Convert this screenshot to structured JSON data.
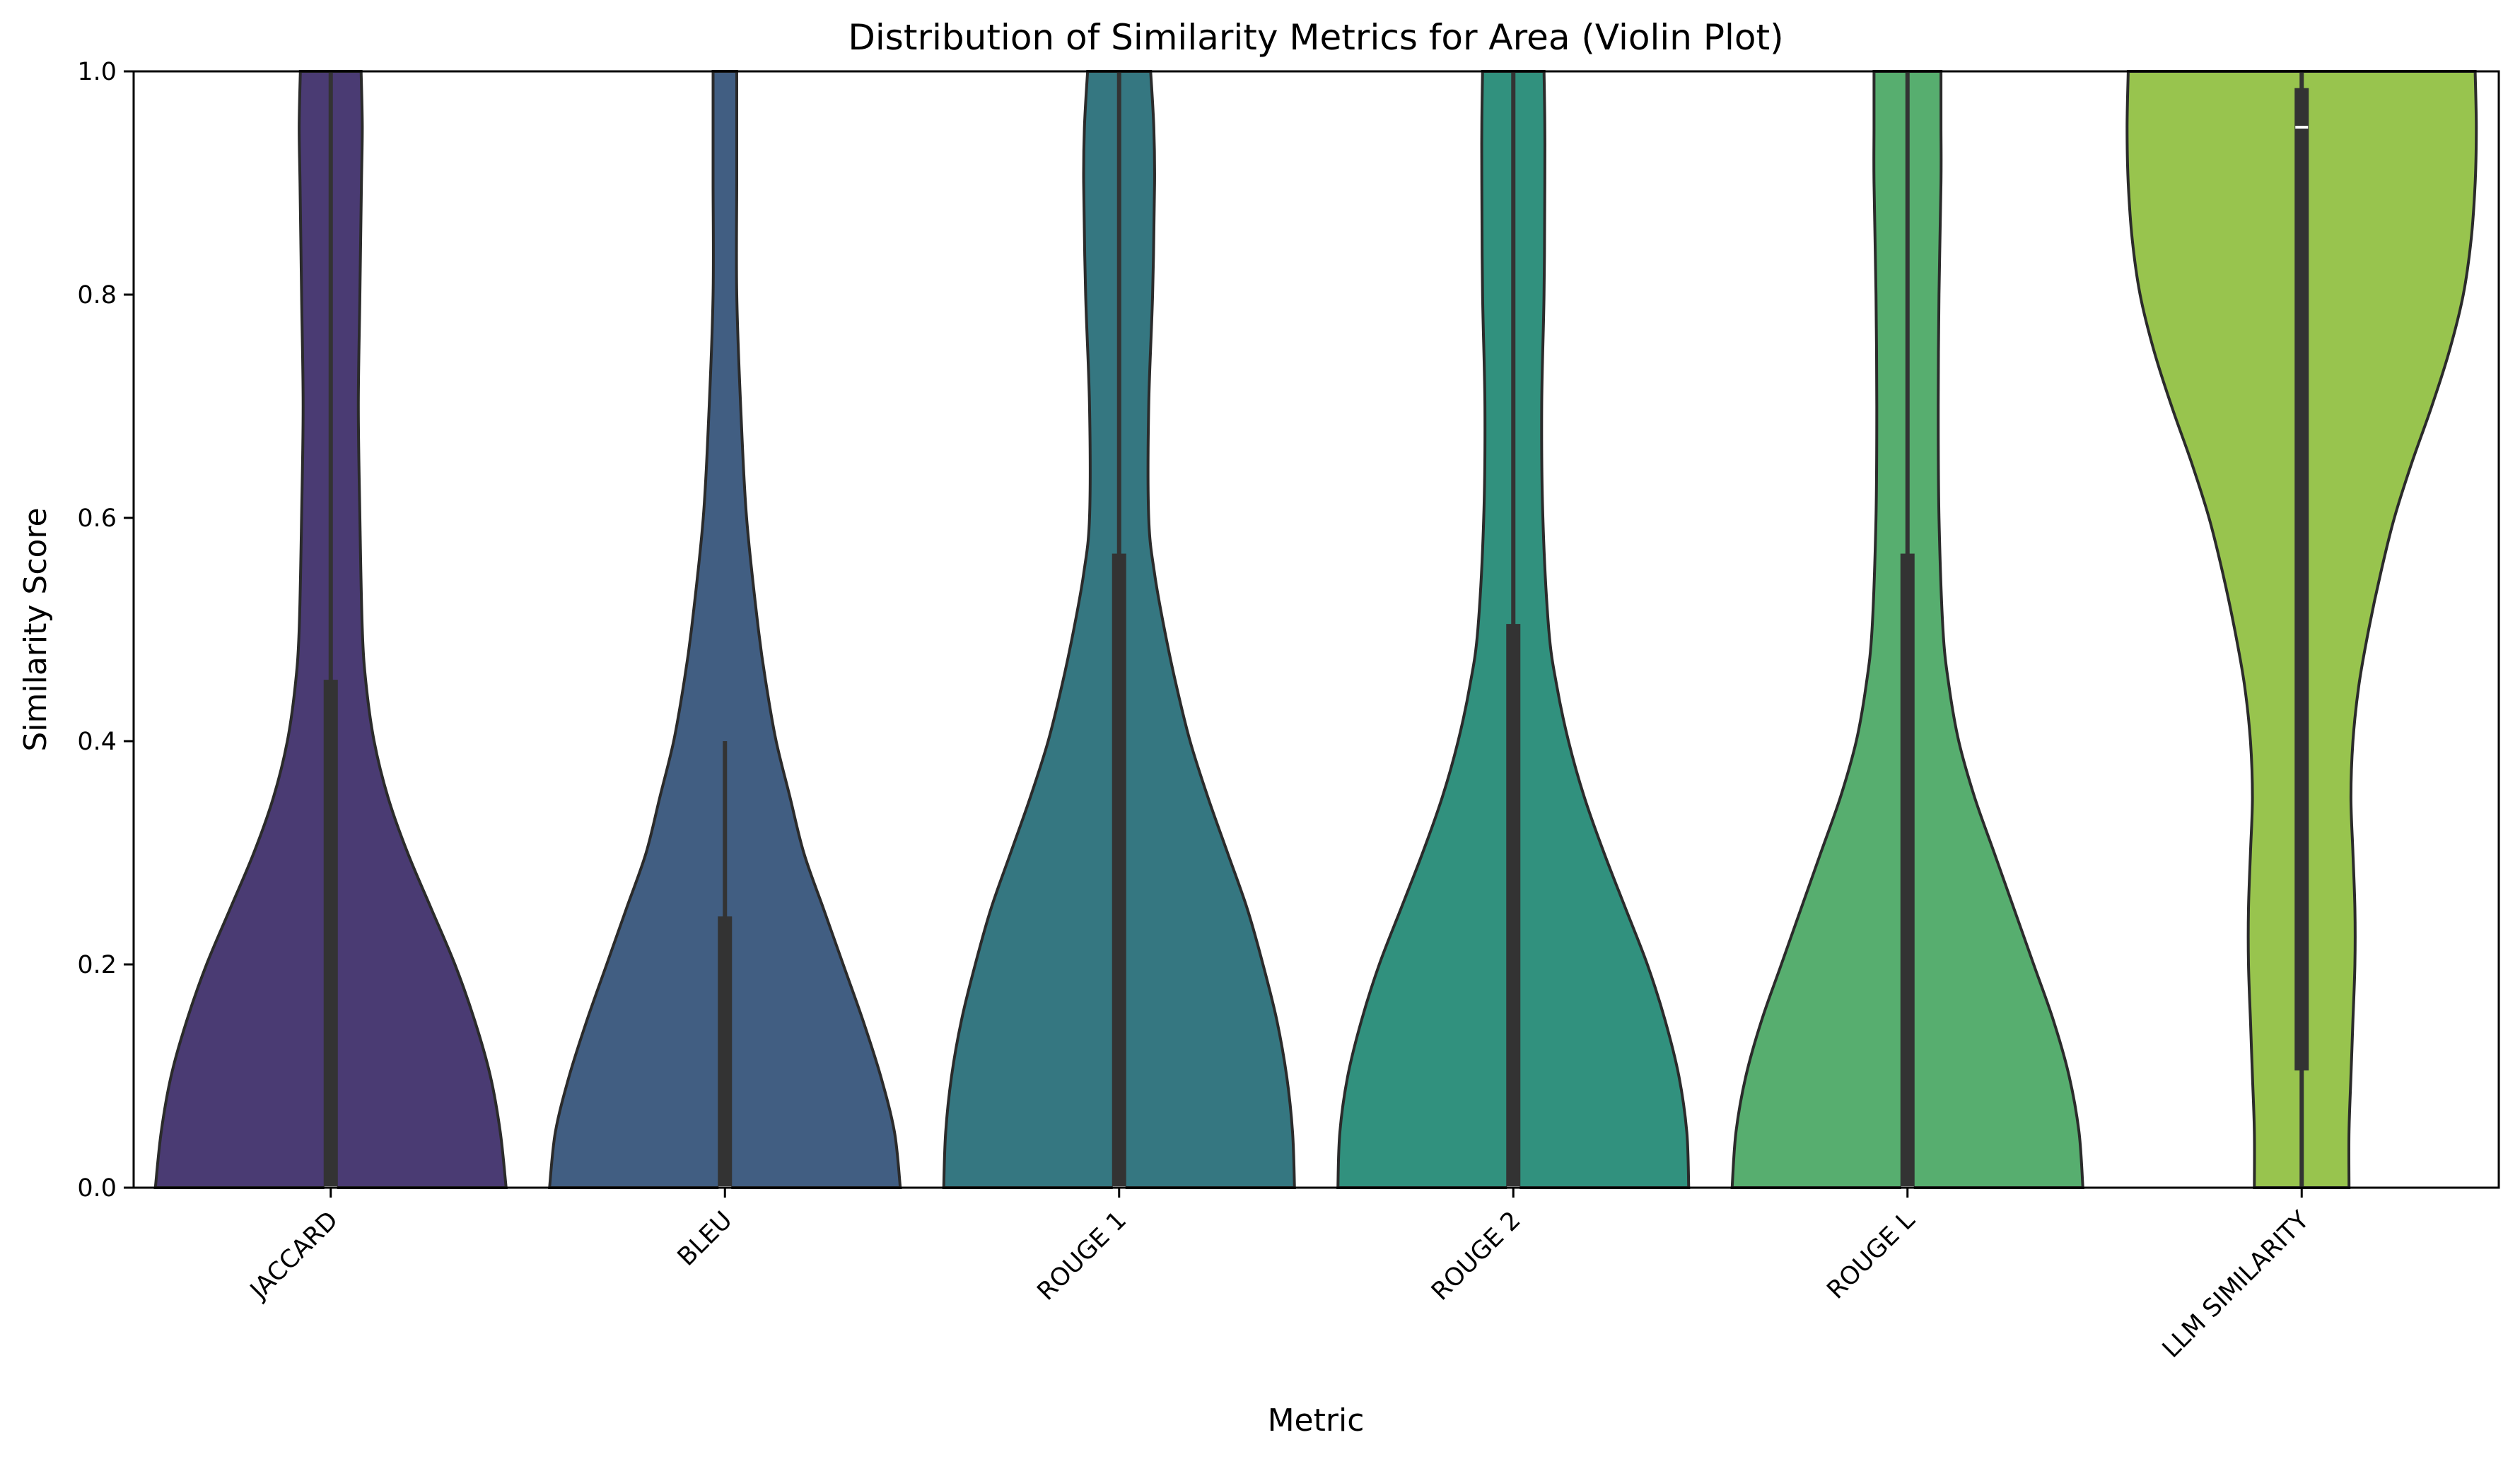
{
  "chart_data": {
    "type": "violin",
    "title": "Distribution of Similarity Metrics for Area (Violin Plot)",
    "xlabel": "Metric",
    "ylabel": "Similarity Score",
    "ylim": [
      0,
      1
    ],
    "yticks": [
      "0.0",
      "0.2",
      "0.4",
      "0.6",
      "0.8",
      "1.0"
    ],
    "categories": [
      "JACCARD",
      "BLEU",
      "ROUGE 1",
      "ROUGE 2",
      "ROUGE L",
      "LLM SIMILARITY"
    ],
    "grid": false,
    "legend": "none",
    "colors": [
      "#4a3b73",
      "#415e82",
      "#357781",
      "#31917e",
      "#57ae6f",
      "#98c44e"
    ],
    "violins": [
      {
        "category": "JACCARD",
        "q1": 0.0,
        "q3": 0.455,
        "median": 0.0,
        "whisker_low": 0.0,
        "whisker_high": 1.0,
        "profile": [
          [
            0.0,
            0.445
          ],
          [
            0.05,
            0.43
          ],
          [
            0.1,
            0.405
          ],
          [
            0.15,
            0.365
          ],
          [
            0.2,
            0.315
          ],
          [
            0.25,
            0.255
          ],
          [
            0.3,
            0.195
          ],
          [
            0.35,
            0.145
          ],
          [
            0.4,
            0.11
          ],
          [
            0.45,
            0.09
          ],
          [
            0.5,
            0.08
          ],
          [
            0.6,
            0.074
          ],
          [
            0.7,
            0.07
          ],
          [
            0.8,
            0.074
          ],
          [
            0.9,
            0.078
          ],
          [
            0.95,
            0.08
          ],
          [
            1.0,
            0.077
          ]
        ]
      },
      {
        "category": "BLEU",
        "q1": 0.0,
        "q3": 0.243,
        "median": 0.0,
        "whisker_low": 0.0,
        "whisker_high": 0.4,
        "profile": [
          [
            0.0,
            0.445
          ],
          [
            0.05,
            0.43
          ],
          [
            0.1,
            0.395
          ],
          [
            0.15,
            0.35
          ],
          [
            0.2,
            0.3
          ],
          [
            0.25,
            0.25
          ],
          [
            0.3,
            0.2
          ],
          [
            0.35,
            0.165
          ],
          [
            0.4,
            0.13
          ],
          [
            0.45,
            0.105
          ],
          [
            0.5,
            0.085
          ],
          [
            0.6,
            0.055
          ],
          [
            0.7,
            0.04
          ],
          [
            0.8,
            0.03
          ],
          [
            0.9,
            0.03
          ],
          [
            0.95,
            0.03
          ],
          [
            1.0,
            0.03
          ]
        ]
      },
      {
        "category": "ROUGE 1",
        "q1": 0.0,
        "q3": 0.568,
        "median": 0.0,
        "whisker_low": 0.0,
        "whisker_high": 1.0,
        "profile": [
          [
            0.0,
            0.445
          ],
          [
            0.05,
            0.44
          ],
          [
            0.1,
            0.425
          ],
          [
            0.15,
            0.4
          ],
          [
            0.2,
            0.365
          ],
          [
            0.25,
            0.325
          ],
          [
            0.3,
            0.275
          ],
          [
            0.35,
            0.225
          ],
          [
            0.4,
            0.18
          ],
          [
            0.45,
            0.145
          ],
          [
            0.5,
            0.115
          ],
          [
            0.55,
            0.09
          ],
          [
            0.6,
            0.075
          ],
          [
            0.7,
            0.075
          ],
          [
            0.8,
            0.085
          ],
          [
            0.9,
            0.09
          ],
          [
            0.95,
            0.088
          ],
          [
            1.0,
            0.08
          ]
        ]
      },
      {
        "category": "ROUGE 2",
        "q1": 0.0,
        "q3": 0.505,
        "median": 0.0,
        "whisker_low": 0.0,
        "whisker_high": 1.0,
        "profile": [
          [
            0.0,
            0.445
          ],
          [
            0.05,
            0.44
          ],
          [
            0.1,
            0.42
          ],
          [
            0.15,
            0.385
          ],
          [
            0.2,
            0.34
          ],
          [
            0.25,
            0.285
          ],
          [
            0.3,
            0.23
          ],
          [
            0.35,
            0.18
          ],
          [
            0.4,
            0.14
          ],
          [
            0.45,
            0.11
          ],
          [
            0.5,
            0.09
          ],
          [
            0.6,
            0.075
          ],
          [
            0.7,
            0.072
          ],
          [
            0.8,
            0.078
          ],
          [
            0.9,
            0.08
          ],
          [
            0.95,
            0.08
          ],
          [
            1.0,
            0.078
          ]
        ]
      },
      {
        "category": "ROUGE L",
        "q1": 0.0,
        "q3": 0.568,
        "median": 0.0,
        "whisker_low": 0.0,
        "whisker_high": 1.0,
        "profile": [
          [
            0.0,
            0.445
          ],
          [
            0.05,
            0.435
          ],
          [
            0.1,
            0.41
          ],
          [
            0.15,
            0.37
          ],
          [
            0.2,
            0.32
          ],
          [
            0.25,
            0.27
          ],
          [
            0.3,
            0.22
          ],
          [
            0.35,
            0.17
          ],
          [
            0.4,
            0.13
          ],
          [
            0.45,
            0.105
          ],
          [
            0.5,
            0.09
          ],
          [
            0.6,
            0.08
          ],
          [
            0.7,
            0.078
          ],
          [
            0.8,
            0.08
          ],
          [
            0.9,
            0.085
          ],
          [
            0.95,
            0.085
          ],
          [
            1.0,
            0.085
          ]
        ]
      },
      {
        "category": "LLM SIMILARITY",
        "q1": 0.105,
        "q3": 0.985,
        "median": 0.95,
        "whisker_low": 0.0,
        "whisker_high": 1.0,
        "profile": [
          [
            0.0,
            0.12
          ],
          [
            0.05,
            0.12
          ],
          [
            0.1,
            0.125
          ],
          [
            0.15,
            0.13
          ],
          [
            0.2,
            0.135
          ],
          [
            0.25,
            0.135
          ],
          [
            0.3,
            0.13
          ],
          [
            0.35,
            0.125
          ],
          [
            0.4,
            0.13
          ],
          [
            0.45,
            0.145
          ],
          [
            0.5,
            0.17
          ],
          [
            0.55,
            0.2
          ],
          [
            0.6,
            0.235
          ],
          [
            0.65,
            0.28
          ],
          [
            0.7,
            0.33
          ],
          [
            0.75,
            0.375
          ],
          [
            0.8,
            0.41
          ],
          [
            0.85,
            0.43
          ],
          [
            0.9,
            0.44
          ],
          [
            0.95,
            0.443
          ],
          [
            1.0,
            0.44
          ]
        ]
      }
    ]
  }
}
